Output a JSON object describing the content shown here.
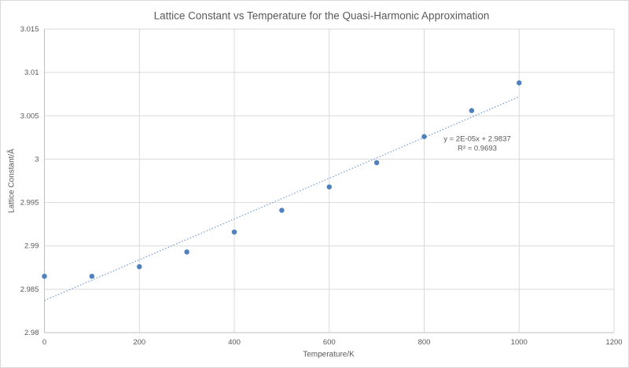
{
  "chart_data": {
    "type": "scatter",
    "title": "Lattice Constant vs Temperature for the Quasi-Harmonic Approximation",
    "xlabel": "Temperature/K",
    "ylabel": "Lattice Constant/Å",
    "xlim": [
      0,
      1200
    ],
    "ylim": [
      2.98,
      3.015
    ],
    "xticks": [
      0,
      200,
      400,
      600,
      800,
      1000,
      1200
    ],
    "yticks": [
      2.98,
      2.985,
      2.99,
      2.995,
      3,
      3.005,
      3.01,
      3.015
    ],
    "grid": true,
    "legend": "none",
    "series": [
      {
        "name": "lattice constant",
        "x": [
          0,
          100,
          200,
          300,
          400,
          500,
          600,
          700,
          800,
          900,
          1000
        ],
        "y": [
          2.9865,
          2.9865,
          2.9876,
          2.9893,
          2.9916,
          2.9941,
          2.9968,
          2.9996,
          3.0026,
          3.0056,
          3.0088
        ],
        "marker_color": "#4f81bd"
      }
    ],
    "trendline": {
      "x0": 0,
      "y0": 2.9837,
      "x1": 1000,
      "y1": 3.0072,
      "style": "dotted",
      "color": "#7ba2d4",
      "equation": "y = 2E-05x + 2.9837",
      "r_squared": "R² = 0.9693"
    },
    "colors": {
      "text": "#595959",
      "gridline": "#d9d9d9",
      "axis_line": "#bfbfbf",
      "background": "#ffffff",
      "border": "#d9d9d9"
    }
  }
}
